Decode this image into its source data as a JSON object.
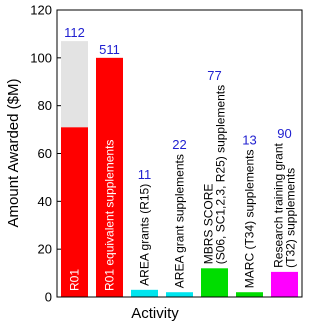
{
  "chart_data": {
    "type": "bar",
    "xlabel": "Activity",
    "ylabel": "Amount Awarded ($M)",
    "categories": [
      [
        "R01"
      ],
      [
        "R01 equivalent supplements"
      ],
      [
        "AREA grants (R15)"
      ],
      [
        "AREA grant supplements"
      ],
      [
        "MBRS SCORE",
        "(S06, SC1,2,3, R25) supplements"
      ],
      [
        "MARC (T34) supplements"
      ],
      [
        "Research training grant",
        "(T32) supplements"
      ]
    ],
    "series": [
      {
        "colors": [
          "#ff0000",
          "#ff0000",
          "#00e5ee",
          "#00e5ee",
          "#00dd00",
          "#00dd00",
          "#ff00ff"
        ],
        "values": [
          71,
          100,
          3,
          2,
          12,
          2,
          10.5
        ]
      },
      {
        "color": "#e3e3e3",
        "values": [
          36,
          null,
          null,
          null,
          null,
          null,
          null
        ]
      }
    ],
    "annotations": [
      112,
      511,
      11,
      22,
      77,
      13,
      90
    ],
    "annotation_color": "#1f1fd0",
    "ylim": [
      0,
      120
    ],
    "yticks": [
      0,
      20,
      40,
      60,
      80,
      100,
      120
    ]
  }
}
